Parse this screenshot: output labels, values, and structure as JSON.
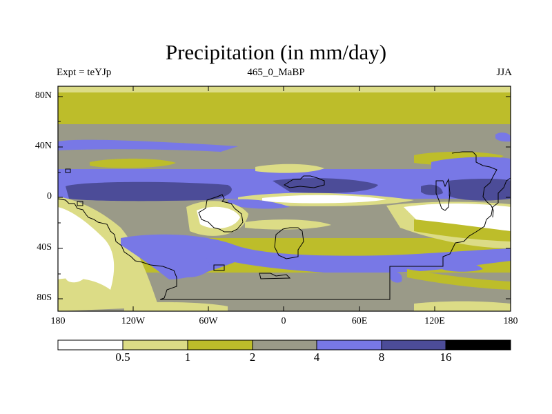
{
  "title": "Precipitation (in mm/day)",
  "subtitle_left": "Expt = teYJp",
  "subtitle_center": "465_0_MaBP",
  "subtitle_right": "JJA",
  "lat_labels": [
    "80N",
    "40N",
    "0",
    "40S",
    "80S"
  ],
  "lon_labels": [
    "180",
    "120W",
    "60W",
    "0",
    "60E",
    "120E",
    "180"
  ],
  "colorbar": {
    "levels": [
      "0.5",
      "1",
      "2",
      "4",
      "8",
      "16"
    ],
    "colors": [
      "#ffffff",
      "#dcdc86",
      "#bdbd2a",
      "#9a9a88",
      "#7878e6",
      "#4c4c98",
      "#000000"
    ]
  },
  "palette": {
    "white": "#ffffff",
    "pale_yellow": "#dcdc86",
    "olive": "#bdbd2a",
    "gray": "#9a9a88",
    "blue": "#7878e6",
    "dark_blue": "#4c4c98",
    "coastline": "#000000"
  }
}
